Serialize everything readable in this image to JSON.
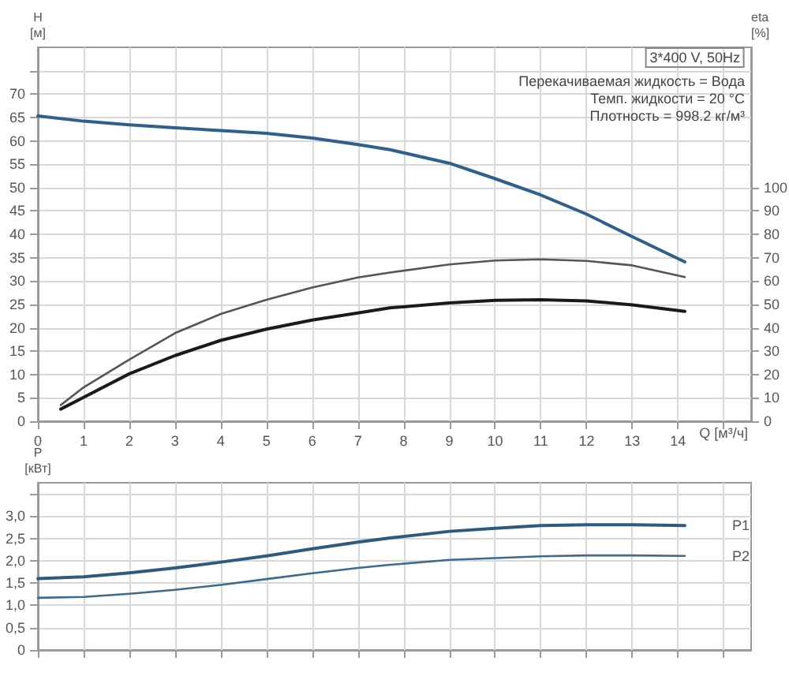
{
  "chart_data": [
    {
      "type": "line",
      "xlabel": "Q [м³/ч]",
      "ylabel": "H [м]",
      "y2label": "eta [%]",
      "xlim": [
        0,
        15.6
      ],
      "xticks": [
        0,
        1,
        2,
        3,
        4,
        5,
        6,
        7,
        8,
        9,
        10,
        11,
        12,
        13,
        14,
        {
          "value": 15,
          "label": null
        }
      ],
      "ylim": [
        0,
        80
      ],
      "yticks": [
        0,
        5,
        10,
        15,
        20,
        25,
        30,
        35,
        40,
        45,
        50,
        55,
        60,
        65,
        70,
        {
          "value": 75,
          "label": null
        }
      ],
      "y2lim": [
        0,
        160
      ],
      "y2ticks": [
        0,
        10,
        20,
        30,
        40,
        50,
        60,
        70,
        80,
        90,
        100
      ],
      "grid": true,
      "marker": "none",
      "annotations": [
        "3*400 V, 50Hz",
        "Перекачиваемая жидкость = Вода",
        "Темп. жидкости = 20 °C",
        "Плотность = 998.2 кг/м³"
      ],
      "series": [
        {
          "color": "#2f5f8a",
          "x": [
            0,
            1,
            2,
            3,
            4,
            5,
            6,
            7,
            7.7,
            9,
            10,
            11,
            12,
            13,
            14.15
          ],
          "values": [
            65.3,
            64.2,
            63.4,
            62.8,
            62.2,
            61.6,
            60.6,
            59.2,
            58.1,
            55.2,
            51.9,
            48.4,
            44.3,
            39.5,
            34.1
          ]
        },
        {
          "color": "#555555",
          "axis": "y2",
          "x": [
            0.5,
            1,
            2,
            3,
            4,
            5,
            6,
            7,
            7.7,
            9,
            10,
            11,
            12,
            13,
            14.15
          ],
          "values": [
            6.9,
            14.5,
            26.4,
            37.7,
            45.9,
            52,
            57.2,
            61.5,
            63.6,
            67.1,
            68.8,
            69.3,
            68.6,
            66.7,
            61.7
          ]
        },
        {
          "color": "#1a1a1a",
          "axis": "y2",
          "x": [
            0.5,
            1,
            2,
            3,
            4,
            5,
            6,
            7,
            7.7,
            9,
            10,
            11,
            12,
            13,
            14.15
          ],
          "values": [
            5.2,
            10.2,
            20.3,
            28.1,
            34.6,
            39.4,
            43.3,
            46.3,
            48.5,
            50.6,
            51.7,
            52,
            51.5,
            49.8,
            47
          ]
        }
      ]
    },
    {
      "type": "line",
      "ylabel": "P [кВт]",
      "xlim": [
        0,
        15.6
      ],
      "xticks": [
        0,
        1,
        2,
        3,
        4,
        5,
        6,
        7,
        8,
        9,
        10,
        11,
        12,
        13,
        14,
        15
      ],
      "ylim": [
        0,
        3.75
      ],
      "yticks": [
        0,
        {
          "value": 0.5,
          "label": "0,5"
        },
        {
          "value": 1,
          "label": "1,0"
        },
        {
          "value": 1.5,
          "label": "1,5"
        },
        {
          "value": 2,
          "label": "2,0"
        },
        {
          "value": 2.5,
          "label": "2,5"
        },
        {
          "value": 3,
          "label": "3,0"
        },
        {
          "value": 3.5,
          "label": null
        }
      ],
      "tick_labels": "y",
      "grid": true,
      "marker": "none",
      "series": [
        {
          "name": "P1",
          "color": "#2d5a80",
          "x": [
            0,
            1,
            2,
            3,
            4,
            5,
            6,
            7,
            7.7,
            9,
            10,
            11,
            12,
            13,
            14.15
          ],
          "values": [
            1.6,
            1.64,
            1.73,
            1.84,
            1.97,
            2.11,
            2.27,
            2.42,
            2.51,
            2.66,
            2.73,
            2.79,
            2.81,
            2.81,
            2.79
          ]
        },
        {
          "name": "P2",
          "color": "#3d6a90",
          "x": [
            0,
            1,
            2,
            3,
            4,
            5,
            6,
            7,
            7.7,
            9,
            10,
            11,
            12,
            13,
            14.15
          ],
          "values": [
            1.17,
            1.19,
            1.26,
            1.35,
            1.46,
            1.59,
            1.72,
            1.84,
            1.91,
            2.02,
            2.06,
            2.1,
            2.12,
            2.12,
            2.11
          ]
        }
      ]
    }
  ]
}
